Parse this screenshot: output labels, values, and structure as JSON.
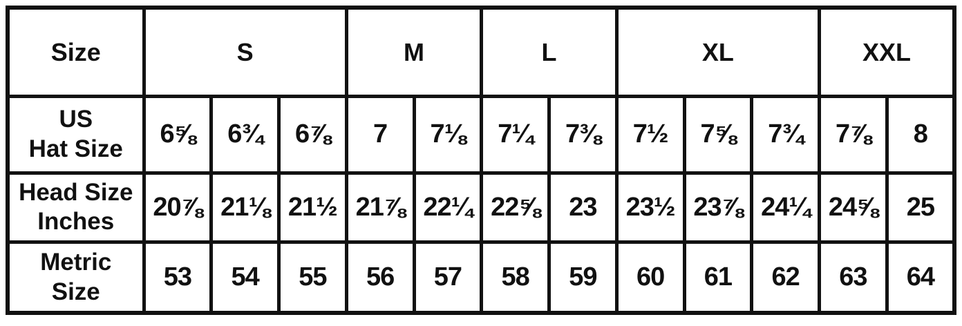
{
  "table": {
    "colors": {
      "border": "#111111",
      "text": "#111111",
      "background": "#ffffff"
    },
    "header": {
      "label": "Size",
      "groups": [
        {
          "label": "S",
          "span": "3"
        },
        {
          "label": "M",
          "span": "2"
        },
        {
          "label": "L",
          "span": "2"
        },
        {
          "label": "XL",
          "span": "3"
        },
        {
          "label": "XXL",
          "span": "2"
        }
      ]
    },
    "rows": [
      {
        "label_lines": [
          "US",
          "Hat Size"
        ],
        "values": [
          "6⅝",
          "6¾",
          "6⅞",
          "7",
          "7⅛",
          "7¼",
          "7⅜",
          "7½",
          "7⅝",
          "7¾",
          "7⅞",
          "8"
        ]
      },
      {
        "label_lines": [
          "Head Size",
          "Inches"
        ],
        "values": [
          "20⅞",
          "21⅛",
          "21½",
          "21⅞",
          "22¼",
          "22⅝",
          "23",
          "23½",
          "23⅞",
          "24¼",
          "24⅝",
          "25"
        ]
      },
      {
        "label_lines": [
          "Metric",
          "Size"
        ],
        "values": [
          "53",
          "54",
          "55",
          "56",
          "57",
          "58",
          "59",
          "60",
          "61",
          "62",
          "63",
          "64"
        ]
      }
    ]
  },
  "chart_data": {
    "type": "table",
    "row_headers": [
      "Size",
      "US Hat Size",
      "Head Size Inches",
      "Metric Size"
    ],
    "size_groups": [
      {
        "size": "S",
        "columns": 3
      },
      {
        "size": "M",
        "columns": 2
      },
      {
        "size": "L",
        "columns": 2
      },
      {
        "size": "XL",
        "columns": 3
      },
      {
        "size": "XXL",
        "columns": 2
      }
    ],
    "us_hat_size": [
      "6⅝",
      "6¾",
      "6⅞",
      "7",
      "7⅛",
      "7¼",
      "7⅜",
      "7½",
      "7⅝",
      "7¾",
      "7⅞",
      "8"
    ],
    "head_size_inches": [
      "20⅞",
      "21⅛",
      "21½",
      "21⅞",
      "22¼",
      "22⅝",
      "23",
      "23½",
      "23⅞",
      "24¼",
      "24⅝",
      "25"
    ],
    "metric_size": [
      53,
      54,
      55,
      56,
      57,
      58,
      59,
      60,
      61,
      62,
      63,
      64
    ]
  }
}
